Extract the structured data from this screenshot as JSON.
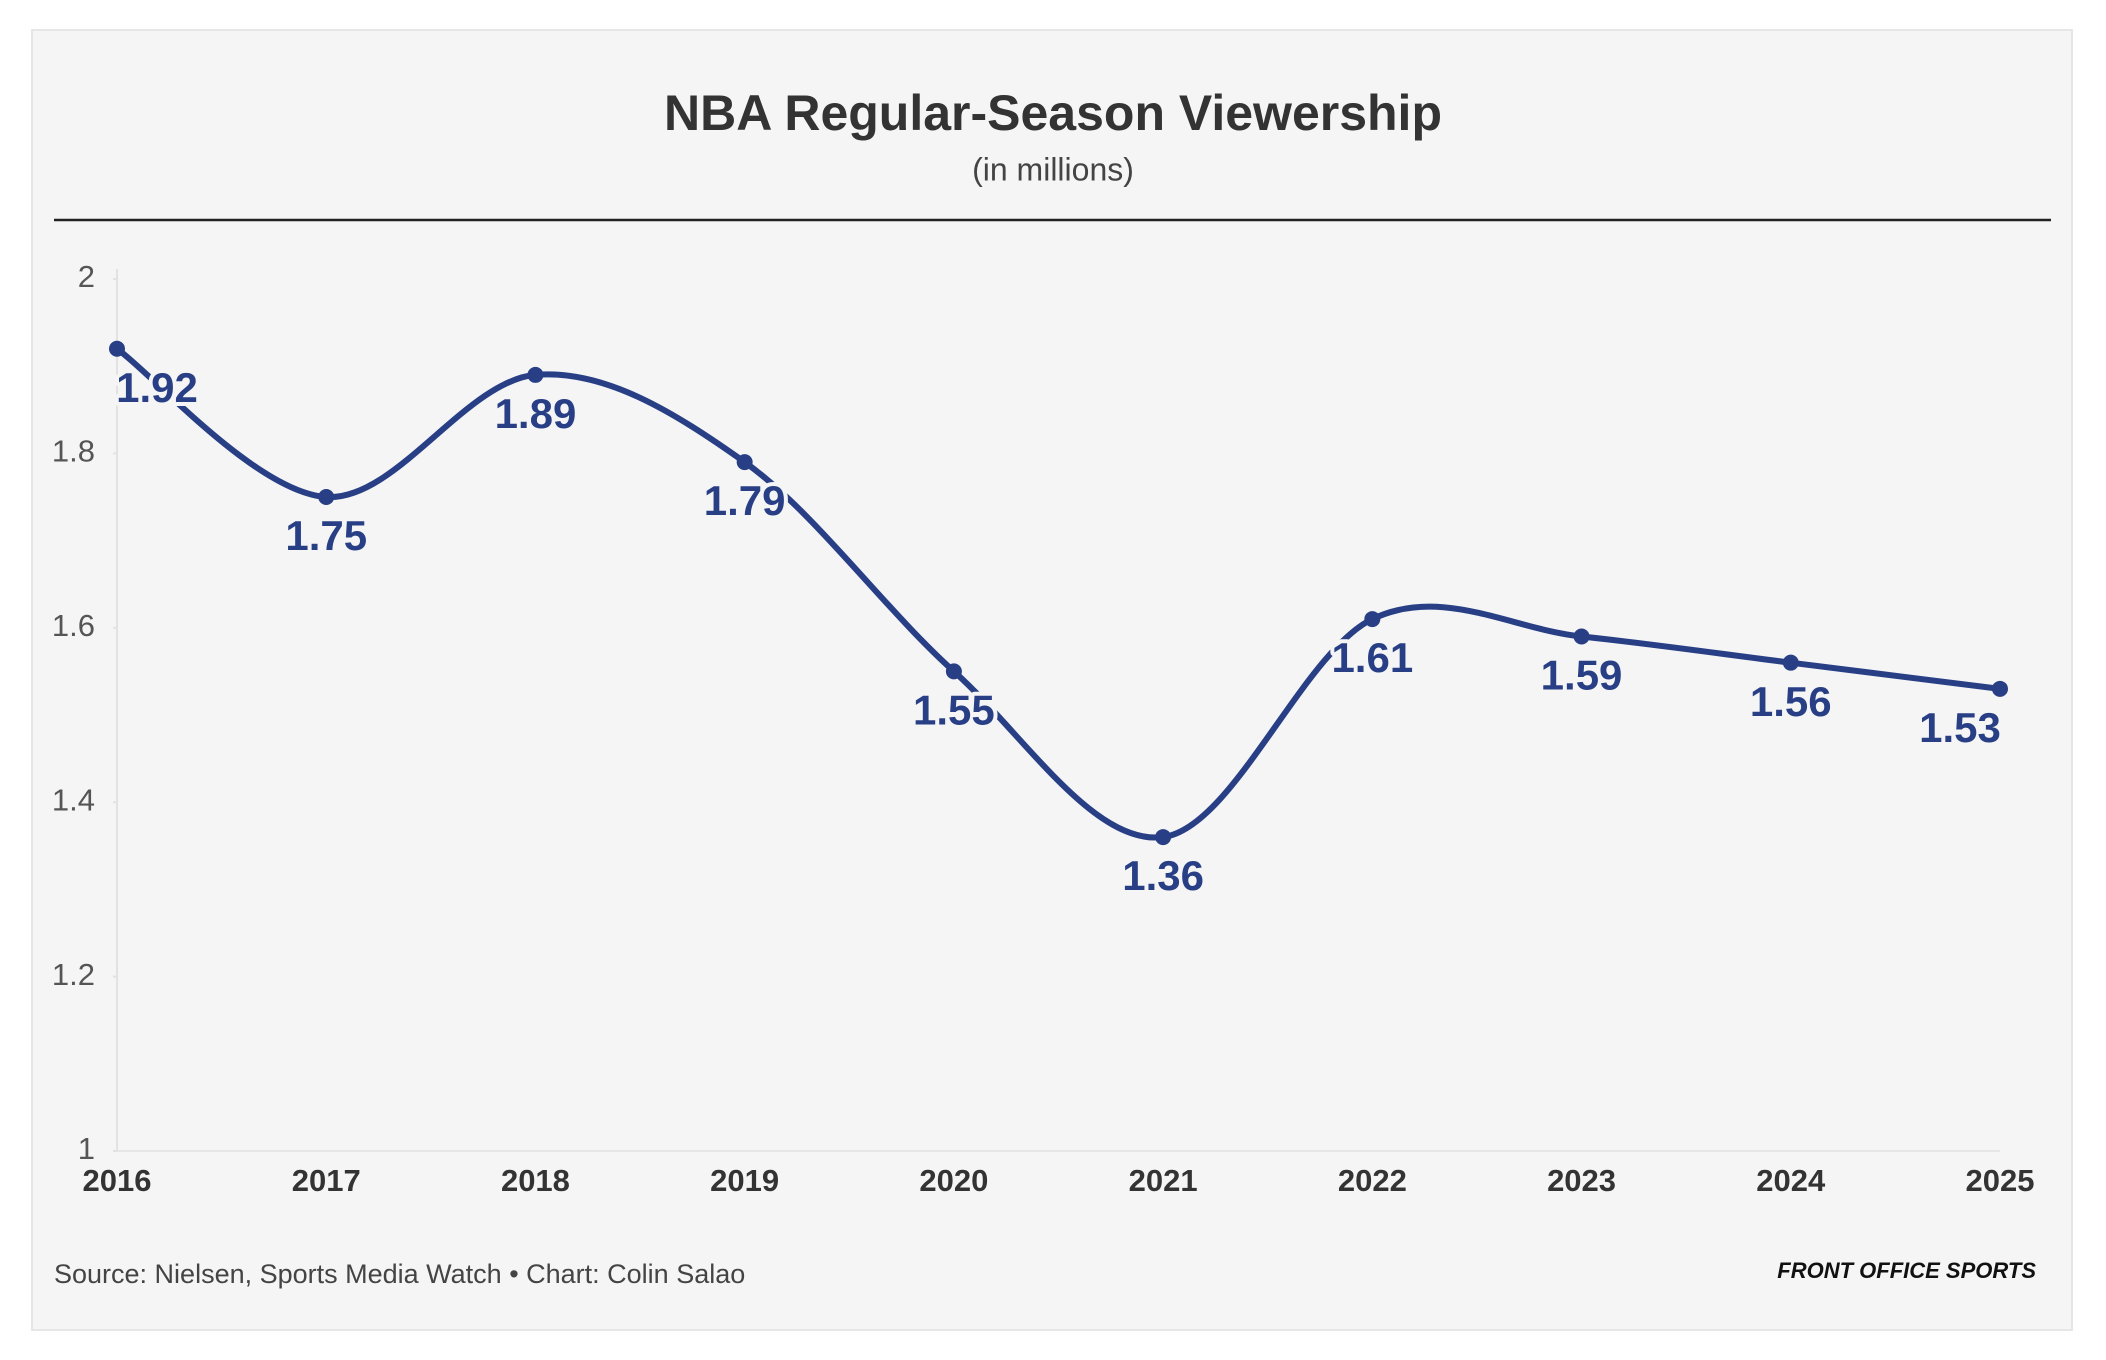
{
  "chart_data": {
    "type": "line",
    "title": "NBA Regular-Season Viewership",
    "subtitle": "(in millions)",
    "categories": [
      "2016",
      "2017",
      "2018",
      "2019",
      "2020",
      "2021",
      "2022",
      "2023",
      "2024",
      "2025"
    ],
    "series": [
      {
        "name": "Viewership",
        "color": "#283f86",
        "values": [
          1.92,
          1.75,
          1.89,
          1.79,
          1.55,
          1.36,
          1.61,
          1.59,
          1.56,
          1.53
        ]
      }
    ],
    "ylim": [
      1,
      2
    ],
    "yticks": [
      1,
      1.2,
      1.4,
      1.6,
      1.8,
      2
    ],
    "source": "Source: Nielsen, Sports Media Watch • Chart: Colin Salao",
    "brand": "FRONT OFFICE SPORTS"
  }
}
